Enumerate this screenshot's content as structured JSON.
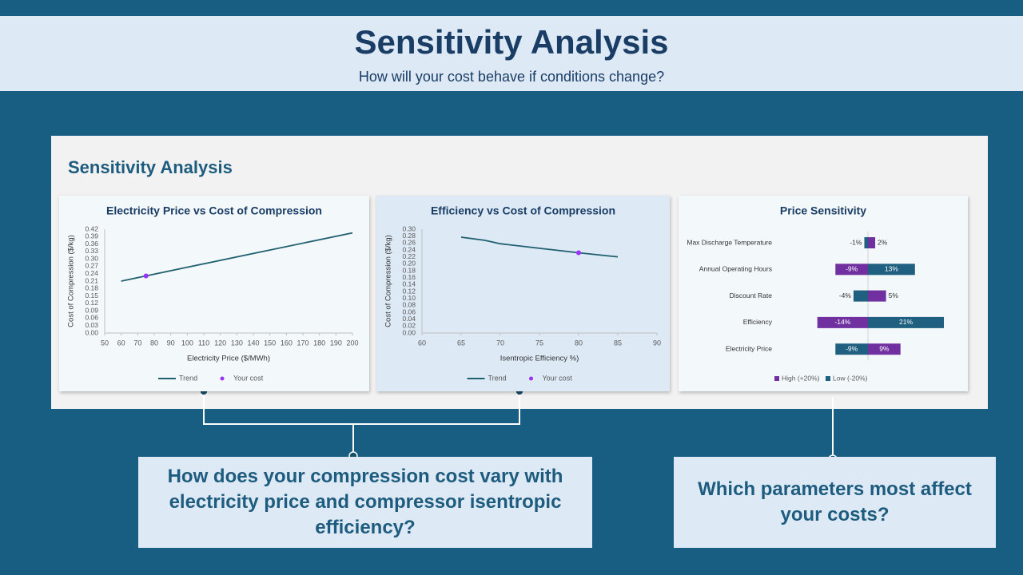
{
  "header": {
    "title": "Sensitivity Analysis",
    "subtitle": "How will your cost behave if conditions change?"
  },
  "panel": {
    "title": "Sensitivity Analysis"
  },
  "chart_data": [
    {
      "type": "line",
      "title": "Electricity Price vs Cost of Compression",
      "x_label": "Electricity Price ($/MWh)",
      "y_label": "Cost of Compression ($/kg)",
      "series": [
        {
          "name": "Trend",
          "color": "#1f5f6f",
          "mode": "line",
          "x": [
            60,
            100,
            140,
            200
          ],
          "values": [
            0.21,
            0.266,
            0.322,
            0.405
          ]
        },
        {
          "name": "Your cost",
          "color": "#9b30ff",
          "mode": "markers",
          "x": [
            75
          ],
          "values": [
            0.231
          ]
        }
      ],
      "xlim": [
        50,
        200
      ],
      "xticks": [
        50,
        60,
        70,
        80,
        90,
        100,
        110,
        120,
        130,
        140,
        150,
        160,
        170,
        180,
        190,
        200
      ],
      "ylim": [
        0,
        0.42
      ],
      "yticks": [
        {
          "value": 0,
          "label": "0.00"
        },
        0.03,
        0.06,
        0.09,
        0.12,
        0.15,
        0.18,
        0.21,
        0.24,
        0.27,
        {
          "value": 0.3,
          "label": "0.30"
        },
        0.33,
        0.36,
        0.39,
        0.42
      ]
    },
    {
      "type": "line",
      "title": "Efficiency vs Cost of Compression",
      "x_label": "Isentropic Efficiency %)",
      "y_label": "Cost of Compression ($/kg)",
      "series": [
        {
          "name": "Trend",
          "color": "#1f5f6f",
          "mode": "line",
          "x": [
            65,
            68,
            70,
            75,
            80,
            85
          ],
          "values": [
            0.277,
            0.268,
            0.258,
            0.245,
            0.232,
            0.22
          ]
        },
        {
          "name": "Your cost",
          "color": "#9b30ff",
          "mode": "markers",
          "x": [
            80
          ],
          "values": [
            0.232
          ]
        }
      ],
      "xlim": [
        60,
        90
      ],
      "xticks": [
        60,
        65,
        70,
        75,
        80,
        85,
        90
      ],
      "ylim": [
        0,
        0.3
      ],
      "yticks": [
        {
          "value": 0,
          "label": "0.00"
        },
        0.02,
        0.04,
        0.06,
        0.08,
        {
          "value": 0.1,
          "label": "0.10"
        },
        0.12,
        0.14,
        0.16,
        0.18,
        {
          "value": 0.2,
          "label": "0.20"
        },
        0.22,
        0.24,
        0.26,
        0.28,
        {
          "value": 0.3,
          "label": "0.30"
        }
      ]
    },
    {
      "type": "tornado",
      "title": "Price Sensitivity",
      "categories": [
        "Max Discharge Temperature",
        "Annual Operating Hours",
        "Discount Rate",
        "Efficiency",
        "Electricity Price"
      ],
      "series": [
        {
          "name": "High (+20%)",
          "color": "#7030a0",
          "values": [
            2,
            -9,
            5,
            -14,
            9
          ],
          "value_labels": [
            "2%",
            "-9%",
            "5%",
            "-14%",
            "9%"
          ]
        },
        {
          "name": "Low (-20%)",
          "color": "#1f5f7f",
          "values": [
            -1,
            13,
            -4,
            21,
            -9
          ],
          "value_labels": [
            "-1%",
            "13%",
            "-4%",
            "21%",
            "-9%"
          ]
        }
      ]
    }
  ],
  "callouts": [
    "How does your compression cost vary with electricity price and compressor isentropic efficiency?",
    "Which parameters most affect your costs?"
  ]
}
